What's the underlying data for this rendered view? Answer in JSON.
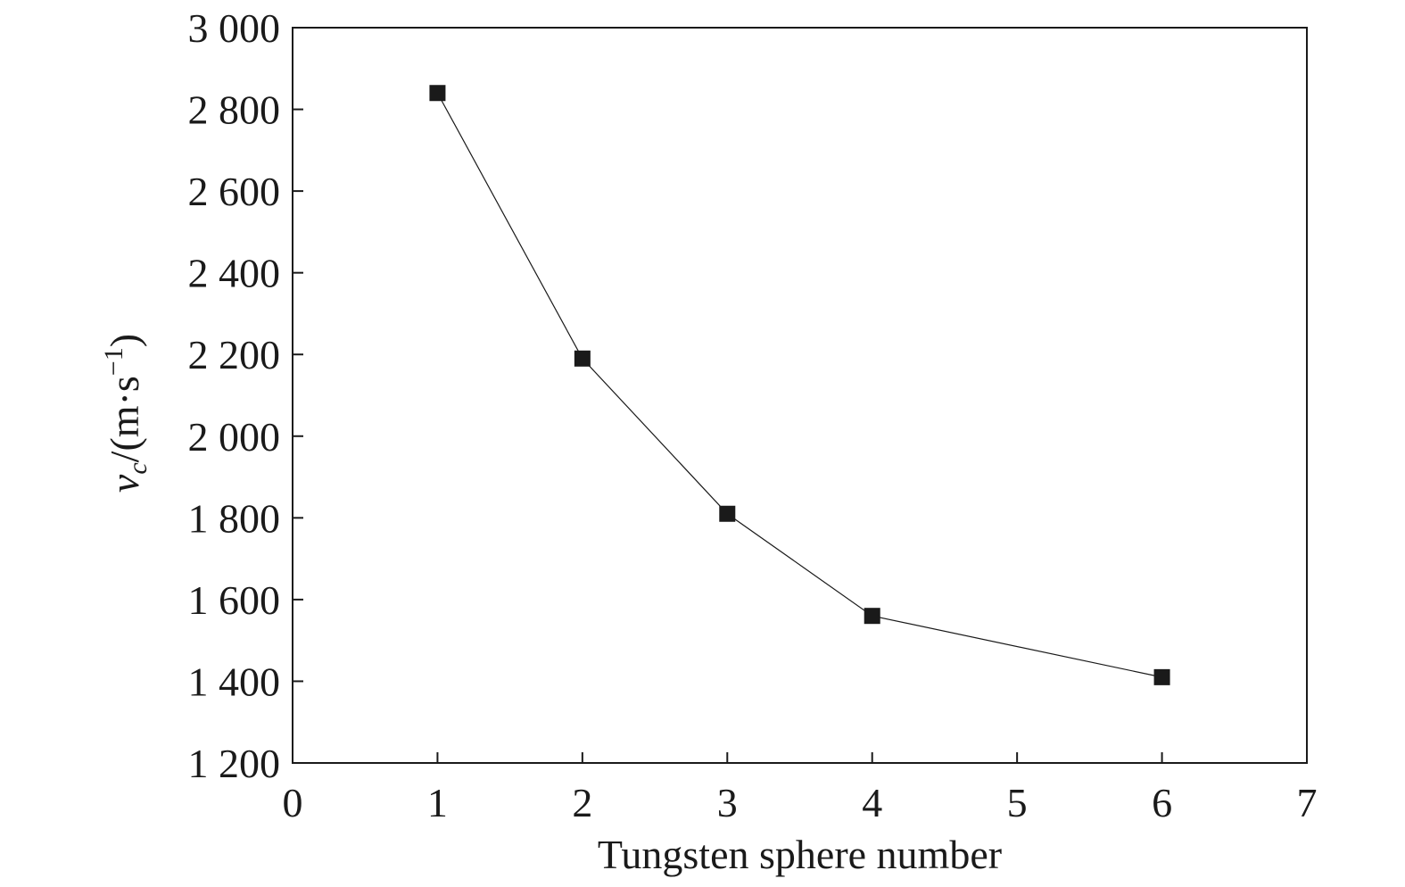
{
  "chart_data": {
    "type": "line",
    "xlabel": "Tungsten sphere number",
    "ylabel": {
      "base": "v",
      "subscript": "c",
      "unit_prefix": "/(m·s",
      "unit_superscript": "−1",
      "unit_suffix": ")"
    },
    "xlim": [
      0,
      7
    ],
    "ylim": [
      1200,
      3000
    ],
    "x_ticks": [
      0,
      1,
      2,
      3,
      4,
      5,
      6,
      7
    ],
    "x_tick_labels": [
      "0",
      "1",
      "2",
      "3",
      "4",
      "5",
      "6",
      "7"
    ],
    "y_ticks": [
      1200,
      1400,
      1600,
      1800,
      2000,
      2200,
      2400,
      2600,
      2800,
      3000
    ],
    "y_tick_labels": [
      "1 200",
      "1 400",
      "1 600",
      "1 800",
      "2 000",
      "2 200",
      "2 400",
      "2 600",
      "2 800",
      "3 000"
    ],
    "grid": false,
    "marker": "square",
    "series": [
      {
        "x": [
          1,
          2,
          3,
          4,
          6
        ],
        "y": [
          2840,
          2190,
          1810,
          1560,
          1410
        ]
      }
    ]
  }
}
